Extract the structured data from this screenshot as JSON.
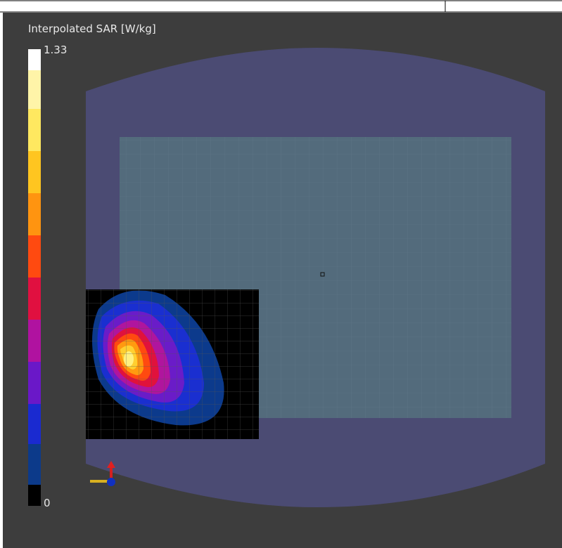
{
  "colorbar": {
    "title": "Interpolated SAR [W/kg]",
    "max": 1.33,
    "min": 0
  }
}
